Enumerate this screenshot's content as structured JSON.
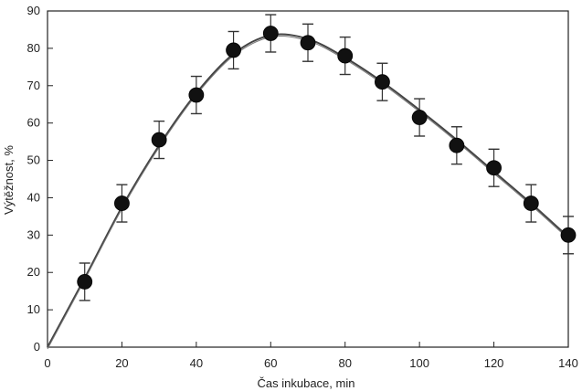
{
  "chart_data": {
    "type": "scatter",
    "title": "",
    "xlabel": "Čas inkubace, min",
    "ylabel": "Výtěžnost, %",
    "xlim": [
      0,
      140
    ],
    "ylim": [
      0,
      90
    ],
    "x_ticks": [
      0,
      20,
      40,
      60,
      80,
      100,
      120,
      140
    ],
    "y_ticks": [
      0,
      10,
      20,
      30,
      40,
      50,
      60,
      70,
      80,
      90
    ],
    "grid": false,
    "legend": "none",
    "series": [
      {
        "x": [
          10,
          20,
          30,
          40,
          50,
          60,
          70,
          80,
          90,
          100,
          110,
          120,
          130,
          140
        ],
        "y": [
          17.5,
          38.5,
          55.5,
          67.5,
          79.5,
          84,
          81.5,
          78,
          71,
          61.5,
          54,
          48,
          38.5,
          30
        ],
        "error": [
          5,
          5,
          5,
          5,
          5,
          5,
          5,
          5,
          5,
          5,
          5,
          5,
          5,
          5
        ],
        "marker_color": "#111111",
        "fit_curve": {
          "x": [
            0,
            10,
            20,
            30,
            40,
            50,
            60,
            70,
            80,
            90,
            100,
            110,
            120,
            130,
            140
          ],
          "y": [
            0,
            18.5,
            37.5,
            54,
            68,
            78.5,
            83.5,
            82.5,
            77.5,
            71,
            63.5,
            55.5,
            47,
            38.5,
            29.5
          ],
          "color": "#444444"
        }
      }
    ]
  }
}
